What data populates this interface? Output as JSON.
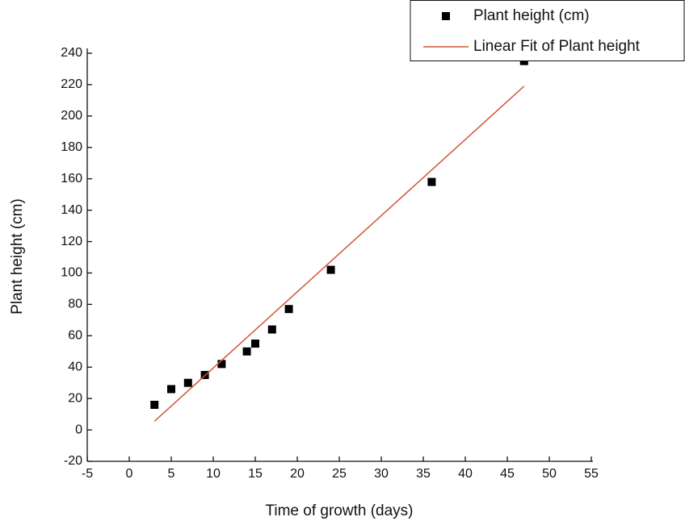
{
  "chart_data": {
    "type": "scatter",
    "x_label": "Time of growth (days)",
    "y_label": "Plant height (cm)",
    "xlim": [
      -5,
      55
    ],
    "xticks": [
      -5,
      0,
      5,
      10,
      15,
      20,
      25,
      30,
      35,
      40,
      45,
      50,
      55
    ],
    "ylim": [
      -20,
      240
    ],
    "yticks": [
      -20,
      0,
      20,
      40,
      60,
      80,
      100,
      120,
      140,
      160,
      180,
      200,
      220,
      240
    ],
    "legend": "upper right",
    "series": [
      {
        "name": "Plant height (cm)",
        "color": "#000000",
        "mode": "markers",
        "x": [
          3,
          5,
          7,
          9,
          11,
          14,
          15,
          17,
          19,
          24,
          36,
          47
        ],
        "values": [
          16,
          26,
          30,
          35,
          42,
          50,
          55,
          64,
          77,
          102,
          158,
          235
        ]
      },
      {
        "name": "Linear Fit of Plant height",
        "color": "#d0533a",
        "mode": "line",
        "x": [
          3,
          47
        ],
        "values": [
          5.5,
          219
        ]
      }
    ]
  }
}
